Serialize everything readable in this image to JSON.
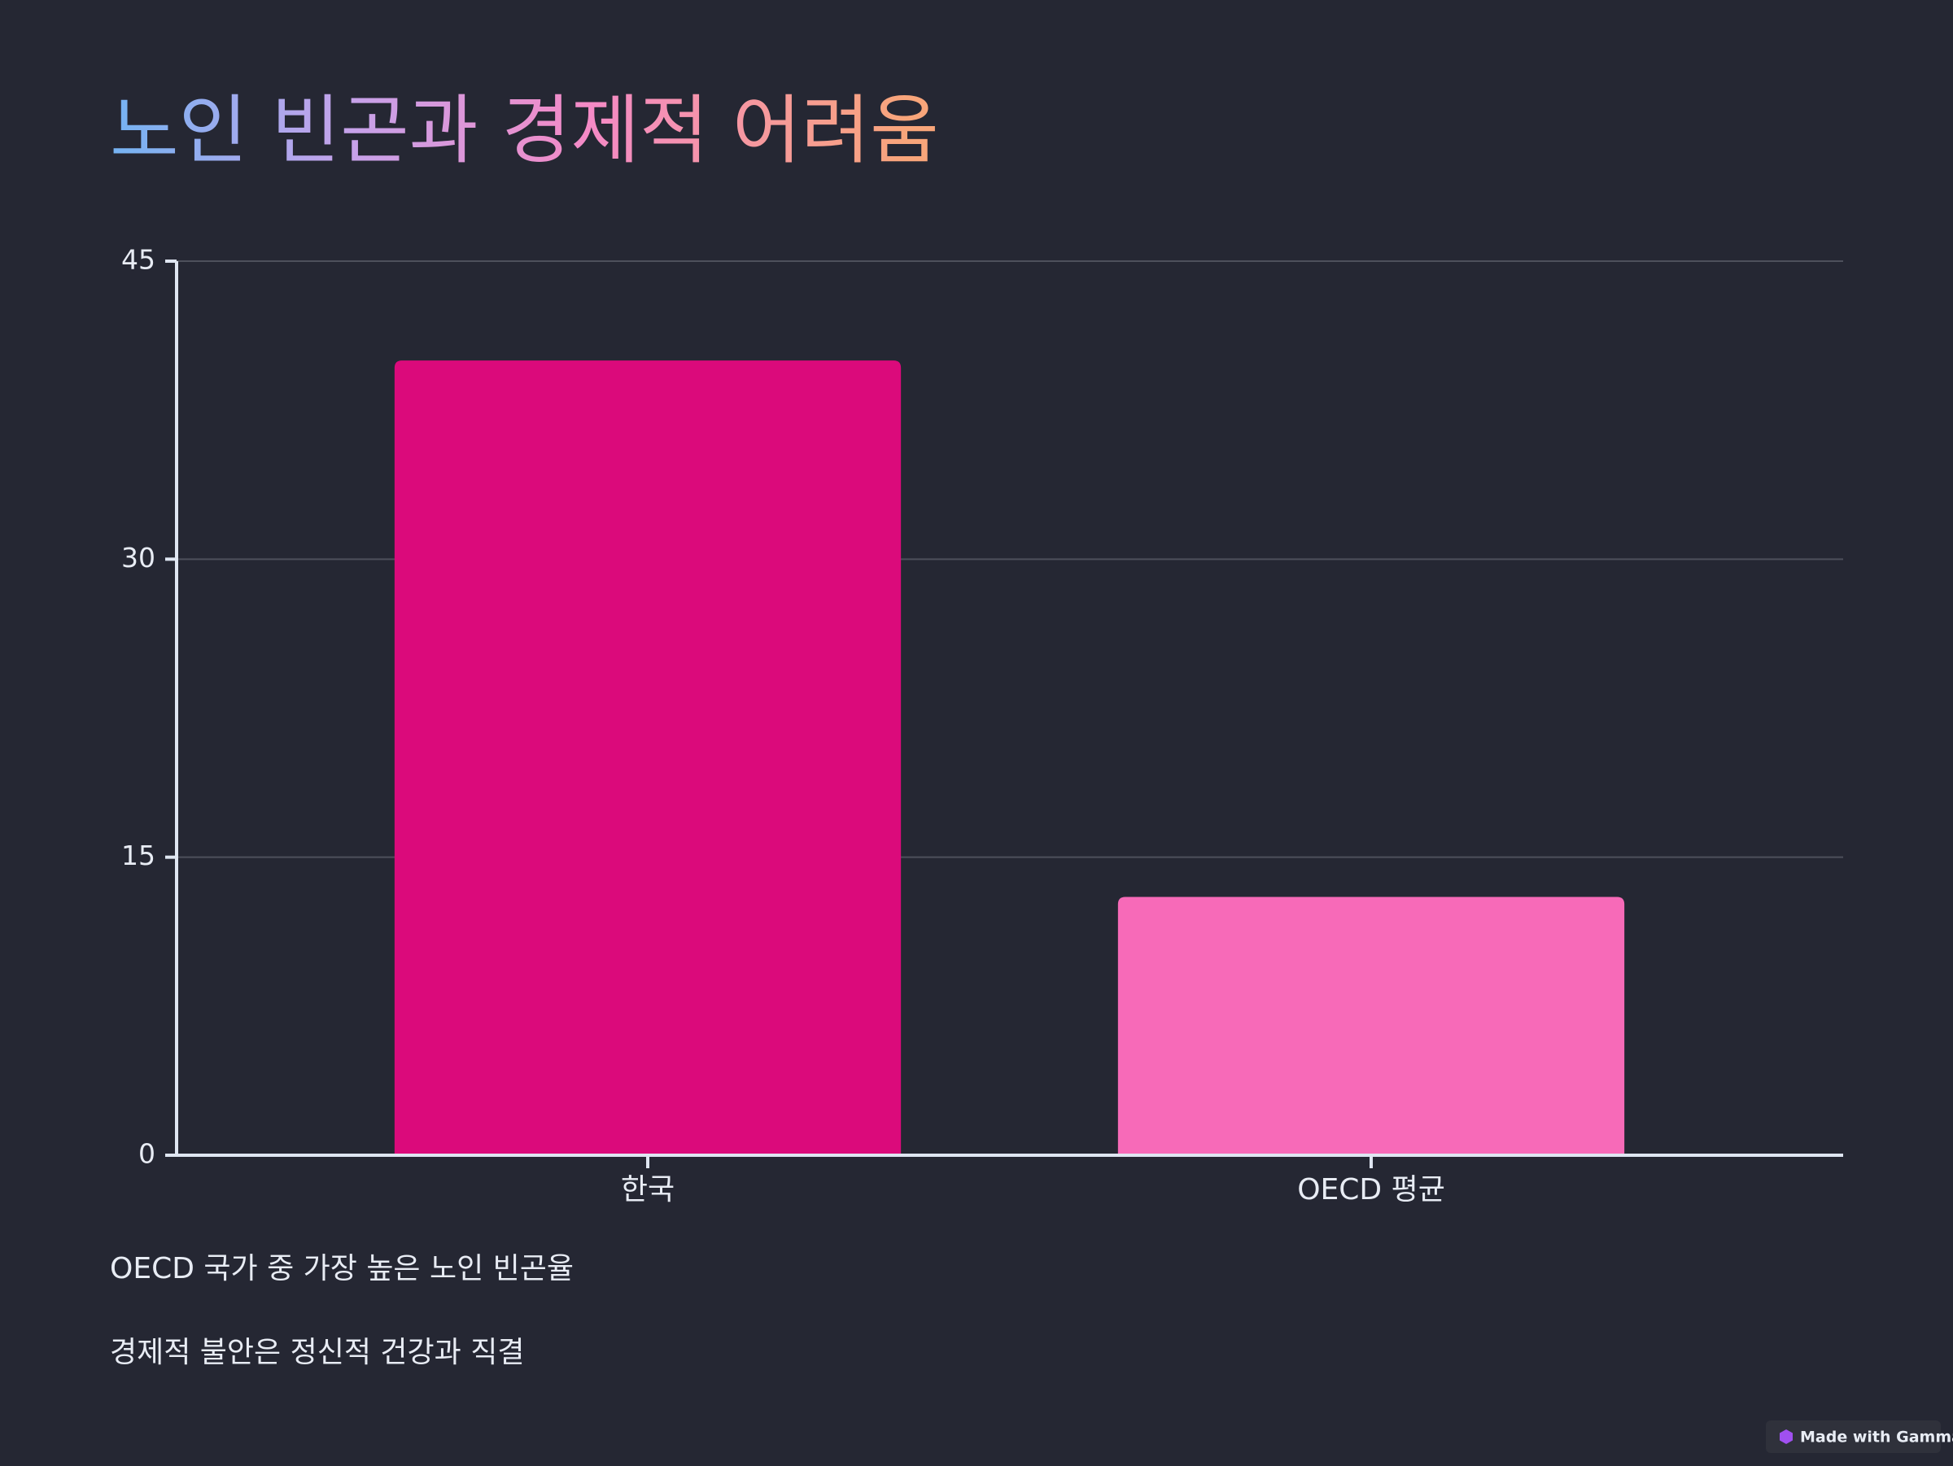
{
  "chart_data": {
    "type": "bar",
    "title": "노인 빈곤과 경제적 어려움",
    "categories": [
      "한국",
      "OECD 평균"
    ],
    "values": [
      40,
      13
    ],
    "colors": [
      "#db0a7b",
      "#f76ab8"
    ],
    "ylim": [
      0,
      45
    ],
    "yticks": [
      0,
      15,
      30,
      45
    ],
    "grid": true
  },
  "notes": [
    "OECD 국가 중 가장 높은 노인 빈곤율",
    "경제적 불안은 정신적 건강과 직결"
  ],
  "badge": "Made with Gamma"
}
